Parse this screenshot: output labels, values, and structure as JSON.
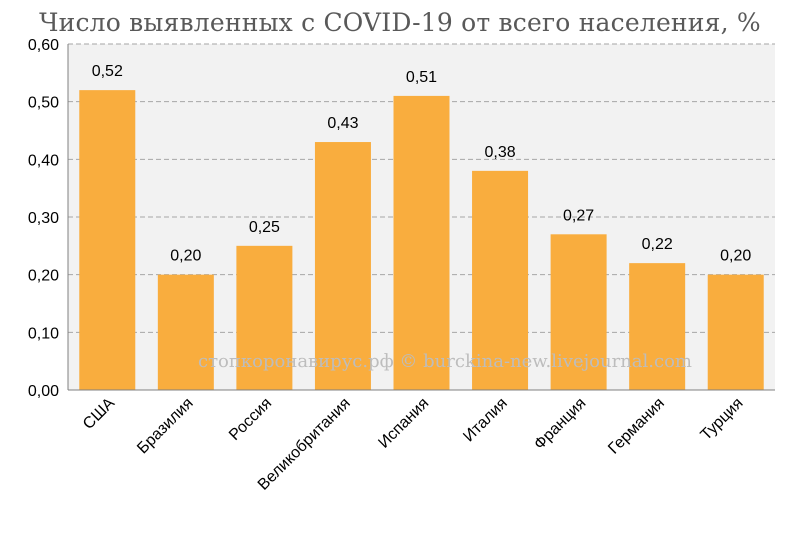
{
  "chart_data": {
    "type": "bar",
    "title": "Число выявленных с COVID-19 от всего населения, %",
    "categories": [
      "США",
      "Бразилия",
      "Россия",
      "Великобритания",
      "Испания",
      "Италия",
      "Франция",
      "Германия",
      "Турция"
    ],
    "values": [
      0.52,
      0.2,
      0.25,
      0.43,
      0.51,
      0.38,
      0.27,
      0.22,
      0.2
    ],
    "data_labels": [
      "0,52",
      "0,20",
      "0,25",
      "0,43",
      "0,51",
      "0,38",
      "0,27",
      "0,22",
      "0,20"
    ],
    "ylim": [
      0,
      0.6
    ],
    "yticks": [
      0.0,
      0.1,
      0.2,
      0.3,
      0.4,
      0.5,
      0.6
    ],
    "ytick_labels": [
      "0,00",
      "0,10",
      "0,20",
      "0,30",
      "0,40",
      "0,50",
      "0,60"
    ],
    "xlabel": "",
    "ylabel": "",
    "grid": true,
    "legend": "none",
    "bar_color": "#f9ad3e",
    "plot_background": "#f2f2f2",
    "gridline_color": "#a6a6a6",
    "watermark": "стопкоронавирус.рф © burckina-new.livejournal.com"
  }
}
